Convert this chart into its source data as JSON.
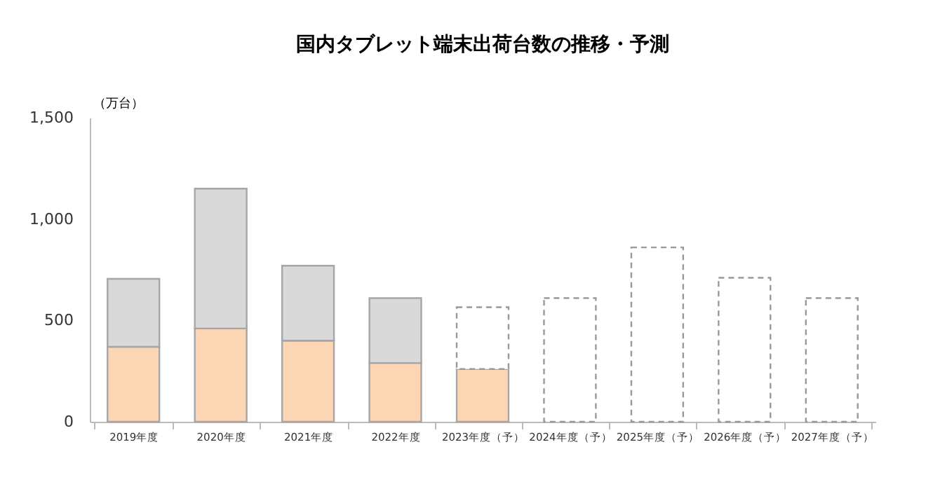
{
  "chart_data": {
    "type": "bar",
    "title": "国内タブレット端末出荷台数の推移・予測",
    "ylabel": "（万台）",
    "stacked": true,
    "categories": [
      "2019年度",
      "2020年度",
      "2021年度",
      "2022年度",
      "2023年度（予）",
      "2024年度（予）",
      "2025年度（予）",
      "2026年度（予）",
      "2027年度（予）"
    ],
    "series": [
      {
        "color": "#fcd5b4",
        "line_style": "solid",
        "values": [
          370,
          460,
          400,
          290,
          260,
          null,
          null,
          null,
          null
        ]
      },
      {
        "color": "#d9d9d9",
        "line_style": "solid",
        "values": [
          335,
          690,
          370,
          320,
          null,
          null,
          null,
          null,
          null
        ]
      },
      {
        "color": "#ffffff",
        "line_style": "dashed",
        "values": [
          null,
          null,
          null,
          null,
          305,
          610,
          860,
          710,
          610
        ]
      }
    ],
    "ylim": [
      0,
      1500
    ],
    "yticks": [
      0,
      {
        "value": 500,
        "label": "500"
      },
      {
        "value": 1000,
        "label": "1,000"
      },
      {
        "value": 1500,
        "label": "1,500"
      }
    ],
    "grid": false
  }
}
